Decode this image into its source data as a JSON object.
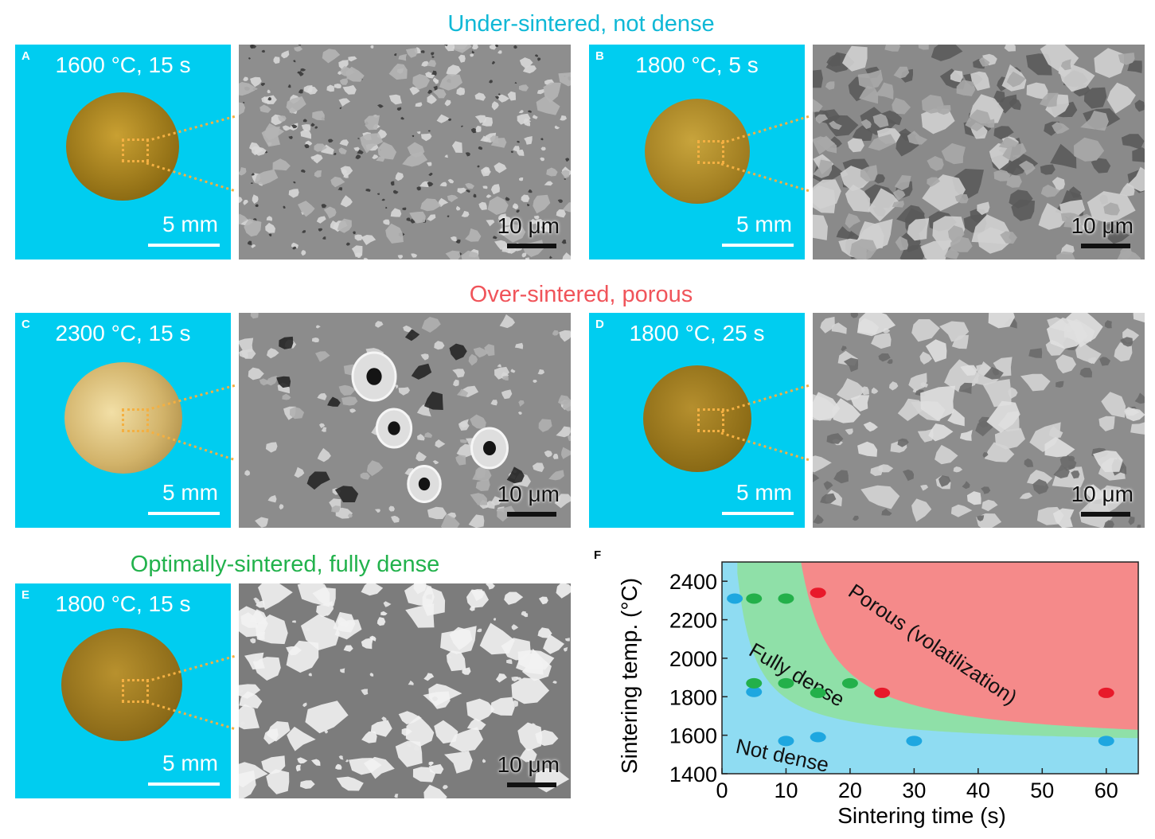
{
  "categories": {
    "under": "Under-sintered, not dense",
    "over": "Over-sintered, porous",
    "optimal": "Optimally-sintered, fully dense"
  },
  "colors": {
    "under": "#0fb8d6",
    "over": "#f0545a",
    "optimal": "#22b24c",
    "panel_bg": "#00cdf0",
    "zoom_line": "#f4b042"
  },
  "panels": {
    "A": {
      "label": "A",
      "condition": "1600 °C, 15 s",
      "scale_macro": "5 mm",
      "scale_micro": "10 μm"
    },
    "B": {
      "label": "B",
      "condition": "1800 °C, 5 s",
      "scale_macro": "5 mm",
      "scale_micro": "10 μm"
    },
    "C": {
      "label": "C",
      "condition": "2300 °C, 15 s",
      "scale_macro": "5 mm",
      "scale_micro": "10 μm"
    },
    "D": {
      "label": "D",
      "condition": "1800 °C, 25 s",
      "scale_macro": "5 mm",
      "scale_micro": "10 μm"
    },
    "E": {
      "label": "E",
      "condition": "1800 °C, 15 s",
      "scale_macro": "5 mm",
      "scale_micro": "10 μm"
    }
  },
  "chart_data": {
    "panel_label": "F",
    "type": "scatter",
    "xlabel": "Sintering time (s)",
    "ylabel": "Sintering temp. (°C)",
    "xlim": [
      0,
      65
    ],
    "ylim": [
      1400,
      2500
    ],
    "xticks": [
      0,
      10,
      20,
      30,
      40,
      50,
      60
    ],
    "yticks": [
      1400,
      1600,
      1800,
      2000,
      2200,
      2400
    ],
    "regions": [
      {
        "name": "Not dense",
        "color": "#8fdcf2"
      },
      {
        "name": "Fully dense",
        "color": "#8fe0a8"
      },
      {
        "name": "Porous (volatilization)",
        "color": "#f58a8a"
      }
    ],
    "series": [
      {
        "category": "not dense",
        "color": "#1ea7e0",
        "points": [
          [
            2,
            2310
          ],
          [
            5,
            1825
          ],
          [
            10,
            1570
          ],
          [
            15,
            1590
          ],
          [
            30,
            1570
          ],
          [
            60,
            1570
          ]
        ]
      },
      {
        "category": "fully dense",
        "color": "#23b04a",
        "points": [
          [
            5,
            2310
          ],
          [
            10,
            2310
          ],
          [
            5,
            1870
          ],
          [
            10,
            1870
          ],
          [
            15,
            1820
          ],
          [
            20,
            1870
          ]
        ]
      },
      {
        "category": "porous",
        "color": "#e8192a",
        "points": [
          [
            15,
            2340
          ],
          [
            25,
            1820
          ],
          [
            60,
            1820
          ]
        ]
      }
    ]
  }
}
